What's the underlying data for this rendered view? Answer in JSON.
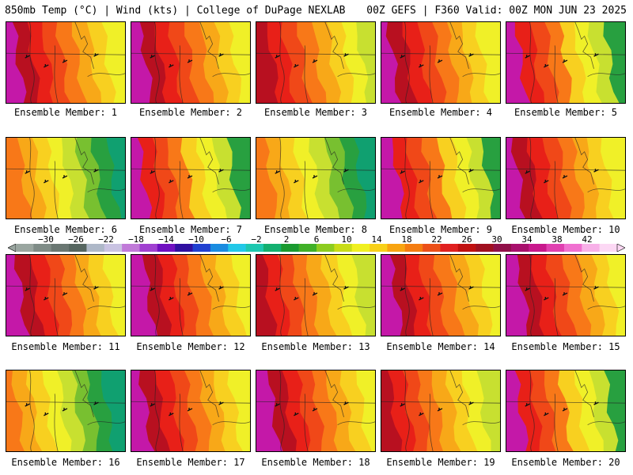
{
  "header": {
    "left": "850mb Temp (°C) | Wind (kts) | College of DuPage NEXLAB",
    "right": "00Z GEFS | F360 Valid: 00Z MON JUN 23 2025"
  },
  "members": [
    {
      "label": "Ensemble Member: 1",
      "scheme": "hot"
    },
    {
      "label": "Ensemble Member: 2",
      "scheme": "hot"
    },
    {
      "label": "Ensemble Member: 3",
      "scheme": "warm"
    },
    {
      "label": "Ensemble Member: 4",
      "scheme": "hot"
    },
    {
      "label": "Ensemble Member: 5",
      "scheme": "hotcool"
    },
    {
      "label": "Ensemble Member: 6",
      "scheme": "cool"
    },
    {
      "label": "Ensemble Member: 7",
      "scheme": "hotcool"
    },
    {
      "label": "Ensemble Member: 8",
      "scheme": "cool"
    },
    {
      "label": "Ensemble Member: 9",
      "scheme": "hotcool"
    },
    {
      "label": "Ensemble Member: 10",
      "scheme": "hot"
    },
    {
      "label": "Ensemble Member: 11",
      "scheme": "hot"
    },
    {
      "label": "Ensemble Member: 12",
      "scheme": "hot"
    },
    {
      "label": "Ensemble Member: 13",
      "scheme": "warm"
    },
    {
      "label": "Ensemble Member: 14",
      "scheme": "hot"
    },
    {
      "label": "Ensemble Member: 15",
      "scheme": "hot"
    },
    {
      "label": "Ensemble Member: 16",
      "scheme": "cool"
    },
    {
      "label": "Ensemble Member: 17",
      "scheme": "hot"
    },
    {
      "label": "Ensemble Member: 18",
      "scheme": "hot"
    },
    {
      "label": "Ensemble Member: 19",
      "scheme": "warm"
    },
    {
      "label": "Ensemble Member: 20",
      "scheme": "hotcool"
    }
  ],
  "colorbar": {
    "labels": [
      "−30",
      "−26",
      "−22",
      "−18",
      "−14",
      "−10",
      "−6",
      "−2",
      "2",
      "6",
      "10",
      "14",
      "18",
      "22",
      "26",
      "30",
      "34",
      "38",
      "42"
    ],
    "colors": [
      "#9aa6a0",
      "#7f8c87",
      "#6a7772",
      "#566660",
      "#aeb8c8",
      "#c9c3e2",
      "#c07ad8",
      "#a040d0",
      "#7010c0",
      "#3010a0",
      "#2040d0",
      "#1a8ce0",
      "#22c8e8",
      "#1ec8b0",
      "#14b070",
      "#1a9a30",
      "#40b028",
      "#8ccc20",
      "#c8dc18",
      "#f0f020",
      "#f8d018",
      "#f8a410",
      "#f47c10",
      "#ec5018",
      "#e02020",
      "#c01010",
      "#a01020",
      "#901048",
      "#a8106c",
      "#c8188c",
      "#e040b0",
      "#f070d0",
      "#f8b0e8",
      "#fcd8f4"
    ],
    "value_min": -34,
    "value_max": 46
  },
  "palette": {
    "magenta": "#c418a8",
    "dark_red": "#b81020",
    "red": "#e82018",
    "red_orange": "#f04818",
    "orange": "#f87818",
    "light_orange": "#f8a818",
    "yellow_orange": "#f8d020",
    "yellow": "#f0f028",
    "yellow_green": "#c8e030",
    "green": "#78c030",
    "dark_green": "#28a040",
    "teal": "#10a070"
  }
}
